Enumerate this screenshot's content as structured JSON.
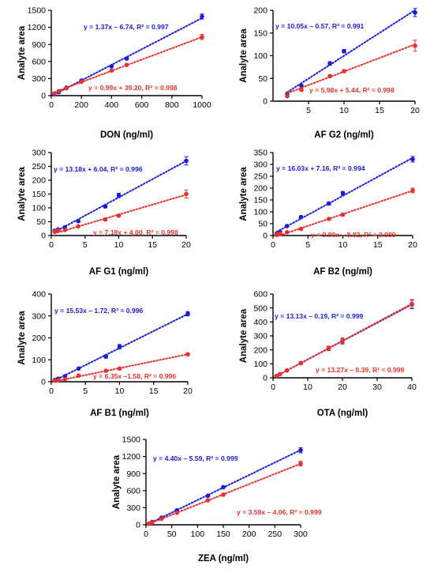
{
  "colors": {
    "series_1": "#1a1adb",
    "series_2": "#e8322e",
    "axis": "#000000"
  },
  "chart_data": [
    {
      "type": "scatter",
      "xlabel": "DON (ng/ml)",
      "ylabel": "Analyte area",
      "xlim": [
        0,
        1000
      ],
      "ylim": [
        0,
        1500
      ],
      "xticks": [
        0,
        200,
        400,
        600,
        800,
        1000
      ],
      "yticks": [
        0,
        300,
        600,
        900,
        1200,
        1500
      ],
      "series": [
        {
          "x": [
            20,
            50,
            100,
            200,
            400,
            500,
            1000
          ],
          "y": [
            25,
            60,
            140,
            265,
            515,
            650,
            1390
          ],
          "err": [
            5,
            6,
            8,
            10,
            15,
            15,
            45
          ],
          "fit": {
            "slope": 1.37,
            "intercept": -6.74
          },
          "equation": "y = 1.37x – 6.74, R² = 0.997"
        },
        {
          "x": [
            20,
            50,
            100,
            200,
            400,
            500,
            1000
          ],
          "y": [
            40,
            80,
            130,
            245,
            440,
            540,
            1030
          ],
          "err": [
            5,
            6,
            8,
            10,
            15,
            15,
            45
          ],
          "fit": {
            "slope": 0.99,
            "intercept": 39.2
          },
          "equation": "y = 0.99x + 39.20, R² = 0.998"
        }
      ]
    },
    {
      "type": "scatter",
      "xlabel": "AF G2 (ng/ml)",
      "ylabel": "Analyte area",
      "xlim": [
        0,
        20
      ],
      "ylim": [
        0,
        200
      ],
      "xticks": [
        5,
        10,
        15,
        20
      ],
      "yticks": [
        0,
        50,
        100,
        150,
        200
      ],
      "series": [
        {
          "x": [
            2,
            4,
            8,
            10,
            20
          ],
          "y": [
            16,
            34,
            83,
            110,
            195
          ],
          "err": [
            2,
            2,
            4,
            4,
            9
          ],
          "fit": {
            "slope": 10.05,
            "intercept": -0.57
          },
          "equation": "y = 10.05x – 0.57, R² = 0.991"
        },
        {
          "x": [
            2,
            4,
            8,
            10,
            20
          ],
          "y": [
            11,
            25,
            55,
            66,
            122
          ],
          "err": [
            2,
            2,
            3,
            3,
            12
          ],
          "fit": {
            "slope": 5.98,
            "intercept": 5.44
          },
          "equation": "y = 5.98x + 5.44, R² = 0.998"
        }
      ]
    },
    {
      "type": "scatter",
      "xlabel": "AF G1 (ng/ml)",
      "ylabel": "Analyte area",
      "xlim": [
        0,
        20
      ],
      "ylim": [
        0,
        300
      ],
      "xticks": [
        0,
        5,
        10,
        15,
        20
      ],
      "yticks": [
        0,
        50,
        100,
        150,
        200,
        250,
        300
      ],
      "series": [
        {
          "x": [
            0.5,
            1,
            2,
            4,
            8,
            10,
            20
          ],
          "y": [
            17,
            22,
            30,
            52,
            105,
            145,
            270
          ],
          "err": [
            2,
            2,
            3,
            3,
            5,
            8,
            15
          ],
          "fit": {
            "slope": 13.18,
            "intercept": 6.04
          },
          "equation": "y = 13.18x + 6.04, R² = 0.996"
        },
        {
          "x": [
            0.5,
            1,
            2,
            4,
            8,
            10,
            20
          ],
          "y": [
            14,
            18,
            20,
            33,
            58,
            72,
            150
          ],
          "err": [
            2,
            2,
            2,
            3,
            4,
            5,
            15
          ],
          "fit": {
            "slope": 7.18,
            "intercept": 4.0
          },
          "equation": "y = 7.18x + 4.00, R² = 0.998"
        }
      ]
    },
    {
      "type": "scatter",
      "xlabel": "AF B2 (ng/ml)",
      "ylabel": "Analyte area",
      "xlim": [
        0,
        20
      ],
      "ylim": [
        0,
        350
      ],
      "xticks": [
        0,
        5,
        10,
        15,
        20
      ],
      "yticks": [
        0,
        50,
        100,
        150,
        200,
        250,
        300,
        350
      ],
      "series": [
        {
          "x": [
            0.5,
            1,
            2,
            4,
            8,
            10,
            20
          ],
          "y": [
            8,
            15,
            40,
            78,
            135,
            178,
            322
          ],
          "err": [
            2,
            2,
            3,
            4,
            6,
            8,
            12
          ],
          "fit": {
            "slope": 16.03,
            "intercept": 7.16
          },
          "equation": "y = 16.03x + 7.16, R² = 0.994"
        },
        {
          "x": [
            0.5,
            1,
            2,
            4,
            8,
            10,
            20
          ],
          "y": [
            5,
            8,
            14,
            28,
            70,
            88,
            190
          ],
          "err": [
            2,
            2,
            2,
            3,
            5,
            5,
            10
          ],
          "fit": {
            "slope": 9.9,
            "intercept": -8.82
          },
          "equation": "y = 9.90x – 8.82, R² = 0.999"
        }
      ]
    },
    {
      "type": "scatter",
      "xlabel": "AF B1 (ng/ml)",
      "ylabel": "Analyte area",
      "xlim": [
        0,
        20
      ],
      "ylim": [
        0,
        400
      ],
      "xticks": [
        0,
        5,
        10,
        15,
        20
      ],
      "yticks": [
        0,
        100,
        200,
        300,
        400
      ],
      "series": [
        {
          "x": [
            0.5,
            1,
            2,
            4,
            8,
            10,
            20
          ],
          "y": [
            8,
            14,
            25,
            60,
            115,
            160,
            310
          ],
          "err": [
            2,
            2,
            3,
            4,
            7,
            10,
            10
          ],
          "fit": {
            "slope": 15.53,
            "intercept": -1.72
          },
          "equation": "y = 15.53x – 1.72, R² = 0.996"
        },
        {
          "x": [
            0.5,
            1,
            2,
            4,
            8,
            10,
            20
          ],
          "y": [
            5,
            7,
            12,
            28,
            50,
            60,
            125
          ],
          "err": [
            2,
            2,
            2,
            3,
            4,
            5,
            6
          ],
          "fit": {
            "slope": 6.35,
            "intercept": -1.58
          },
          "equation": "y = 6.35x –1.58, R² = 0.996"
        }
      ]
    },
    {
      "type": "scatter",
      "xlabel": "OTA (ng/ml)",
      "ylabel": "Analyte area",
      "xlim": [
        0,
        40
      ],
      "ylim": [
        0,
        600
      ],
      "xticks": [
        0,
        10,
        20,
        30,
        40
      ],
      "yticks": [
        0,
        100,
        200,
        300,
        400,
        500,
        600
      ],
      "series": [
        {
          "x": [
            1,
            2,
            4,
            8,
            16,
            20,
            40
          ],
          "y": [
            13,
            26,
            52,
            105,
            210,
            262,
            525
          ],
          "err": [
            3,
            4,
            6,
            8,
            15,
            20,
            30
          ],
          "fit": {
            "slope": 13.13,
            "intercept": -0.19
          },
          "equation": "y = 13.13x – 0.19, R² = 0.999"
        },
        {
          "x": [
            1,
            2,
            4,
            8,
            16,
            20,
            40
          ],
          "y": [
            13,
            26,
            53,
            106,
            212,
            265,
            530
          ],
          "err": [
            3,
            4,
            6,
            8,
            15,
            20,
            30
          ],
          "fit": {
            "slope": 13.27,
            "intercept": -0.39
          },
          "equation": "y = 13.27x – 0.39, R² = 0.999"
        }
      ]
    },
    {
      "type": "scatter",
      "xlabel": "ZEA (ng/ml)",
      "ylabel": "Analyte area",
      "xlim": [
        0,
        300
      ],
      "ylim": [
        0,
        1500
      ],
      "xticks": [
        0,
        50,
        100,
        150,
        200,
        250,
        300
      ],
      "yticks": [
        0,
        300,
        600,
        900,
        1200,
        1500
      ],
      "series": [
        {
          "x": [
            6,
            12,
            30,
            60,
            120,
            150,
            300
          ],
          "y": [
            22,
            50,
            125,
            255,
            510,
            660,
            1310
          ],
          "err": [
            5,
            6,
            8,
            10,
            15,
            20,
            45
          ],
          "fit": {
            "slope": 4.4,
            "intercept": -5.59
          },
          "equation": "y = 4.40x –  5.59, R² = 0.999"
        },
        {
          "x": [
            6,
            12,
            30,
            60,
            120,
            150,
            300
          ],
          "y": [
            18,
            40,
            105,
            210,
            430,
            530,
            1075
          ],
          "err": [
            5,
            6,
            8,
            10,
            15,
            20,
            40
          ],
          "fit": {
            "slope": 3.59,
            "intercept": -4.06
          },
          "equation": "y = 3.59x –  4.06, R² = 0.999"
        }
      ]
    }
  ]
}
